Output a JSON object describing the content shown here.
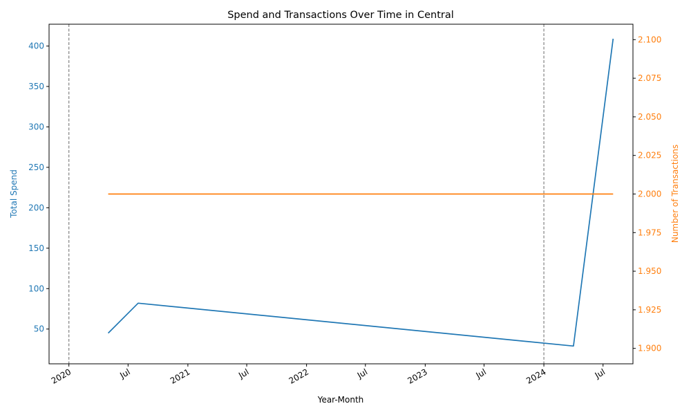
{
  "chart_data": {
    "type": "line",
    "title": "Spend and Transactions Over Time in Central",
    "xlabel": "Year-Month",
    "ylabel_left": "Total Spend",
    "ylabel_right": "Number of Transactions",
    "x_tick_labels": [
      "2020",
      "Jul",
      "2021",
      "Jul",
      "2022",
      "Jul",
      "2023",
      "Jul",
      "2024",
      "Jul"
    ],
    "x_tick_dates": [
      "2020-01-01",
      "2020-07-01",
      "2021-01-01",
      "2021-07-01",
      "2022-01-01",
      "2022-07-01",
      "2023-01-01",
      "2023-07-01",
      "2024-01-01",
      "2024-07-01"
    ],
    "xlim": [
      "2019-11-01",
      "2024-10-01"
    ],
    "left_axis": {
      "ylim": [
        7,
        427
      ],
      "ticks": [
        50,
        100,
        150,
        200,
        250,
        300,
        350,
        400
      ],
      "color": "#1f77b4"
    },
    "right_axis": {
      "ylim": [
        1.89,
        2.11
      ],
      "ticks": [
        "1.900",
        "1.925",
        "1.950",
        "1.975",
        "2.000",
        "2.025",
        "2.050",
        "2.075",
        "2.100"
      ],
      "color": "#ff7f0e"
    },
    "series": [
      {
        "axis": "left",
        "color": "#1f77b4",
        "x": [
          "2020-05-01",
          "2020-08-01",
          "2024-04-01",
          "2024-08-01"
        ],
        "values": [
          45,
          82,
          29,
          409
        ]
      },
      {
        "axis": "right",
        "color": "#ff7f0e",
        "x": [
          "2020-05-01",
          "2024-08-01"
        ],
        "values": [
          2.0,
          2.0
        ]
      }
    ],
    "vlines": [
      "2020-01-01",
      "2024-01-01"
    ],
    "vline_color": "#808080",
    "grid": false,
    "legend": "none"
  }
}
